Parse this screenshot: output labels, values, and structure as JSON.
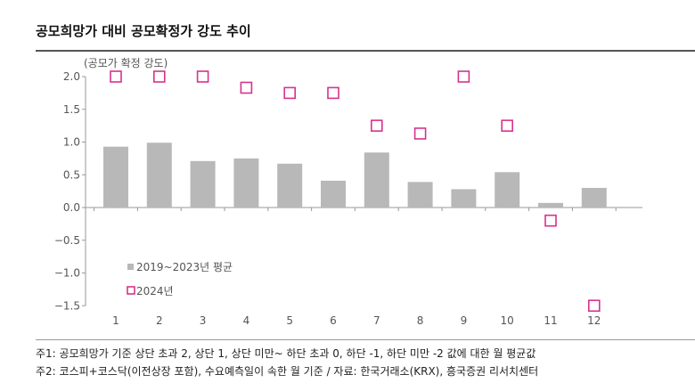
{
  "title": "공모희망가 대비 공모확정가 강도 추이",
  "notes": [
    "주1: 공모희망가 기준 상단 초과 2, 상단 1, 상단 미만~ 하단 초과 0, 하단 -1, 하단 미만 -2 값에 대한 월 평균값",
    "주2: 코스피+코스닥(이전상장 포함), 수요예측일이 속한 월 기준 / 자료: 한국거래소(KRX), 흥국증권 리서치센터"
  ],
  "chart_data": {
    "type": "bar",
    "ylabel": "(공모가 확정 강도)",
    "ylim": [
      -1.5,
      2.0
    ],
    "yticks": [
      "2.0",
      "1.5",
      "1.0",
      "0.5",
      "0.0",
      "−0.5",
      "−1.0",
      "−1.5"
    ],
    "categories": [
      "1",
      "2",
      "3",
      "4",
      "5",
      "6",
      "7",
      "8",
      "9",
      "10",
      "11",
      "12"
    ],
    "series": [
      {
        "name": "2019~2023년 평균",
        "type": "bar",
        "color": "#b8b8b8",
        "values": [
          0.93,
          0.99,
          0.71,
          0.75,
          0.67,
          0.41,
          0.84,
          0.39,
          0.28,
          0.54,
          0.07,
          0.3
        ]
      },
      {
        "name": "2024년",
        "type": "scatter",
        "marker": "square-open",
        "color": "#d6338a",
        "values": [
          2.0,
          2.0,
          2.0,
          1.83,
          1.75,
          1.75,
          1.25,
          1.13,
          2.0,
          1.25,
          -0.2,
          -1.5
        ]
      }
    ],
    "legend": "bottom-left",
    "grid": false
  }
}
